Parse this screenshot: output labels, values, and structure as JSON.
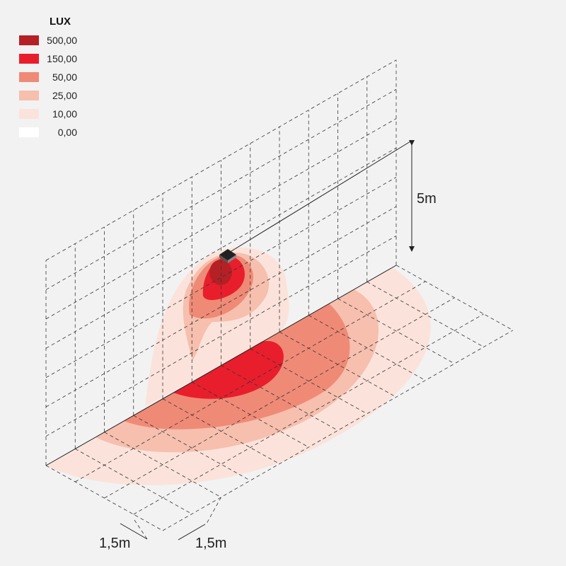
{
  "legend": {
    "title": "LUX",
    "items": [
      {
        "label": "500,00",
        "color": "#b52025"
      },
      {
        "label": "150,00",
        "color": "#e81e2c"
      },
      {
        "label": "50,00",
        "color": "#ef8a76"
      },
      {
        "label": "25,00",
        "color": "#f6bfae"
      },
      {
        "label": "10,00",
        "color": "#fbe3db"
      },
      {
        "label": "0,00",
        "color": "#ffffff"
      }
    ]
  },
  "dimensions": {
    "height": "5m",
    "spacing_left": "1,5m",
    "spacing_right": "1,5m"
  }
}
